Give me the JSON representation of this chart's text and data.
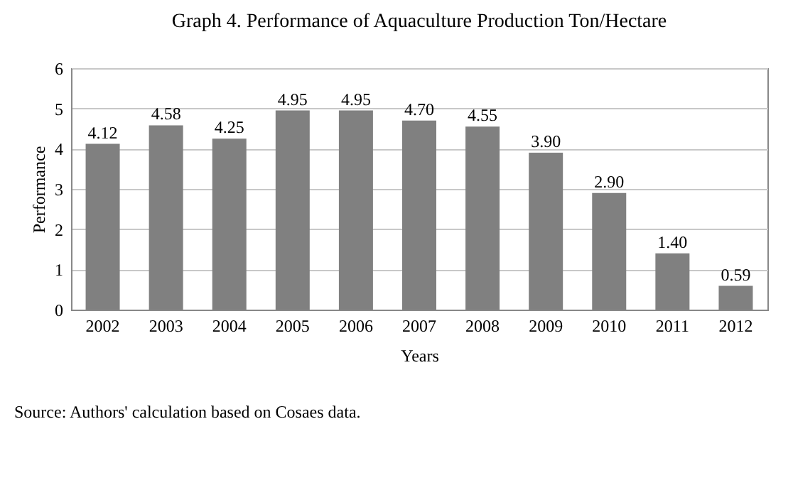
{
  "chart_data": {
    "type": "bar",
    "title": "Graph 4. Performance of Aquaculture Production Ton/Hectare",
    "xlabel": "Years",
    "ylabel": "Performance",
    "categories": [
      "2002",
      "2003",
      "2004",
      "2005",
      "2006",
      "2007",
      "2008",
      "2009",
      "2010",
      "2011",
      "2012"
    ],
    "values": [
      4.12,
      4.58,
      4.25,
      4.95,
      4.95,
      4.7,
      4.55,
      3.9,
      2.9,
      1.4,
      0.59
    ],
    "value_labels": [
      "4.12",
      "4.58",
      "4.25",
      "4.95",
      "4.95",
      "4.70",
      "4.55",
      "3.90",
      "2.90",
      "1.40",
      "0.59"
    ],
    "color": "#808080",
    "ylim": [
      0,
      6
    ],
    "yticks": [
      0,
      1,
      2,
      3,
      4,
      5,
      6
    ],
    "grid": "y",
    "annotations": [
      "Source: Authors' calculation based on Cosaes data."
    ]
  }
}
